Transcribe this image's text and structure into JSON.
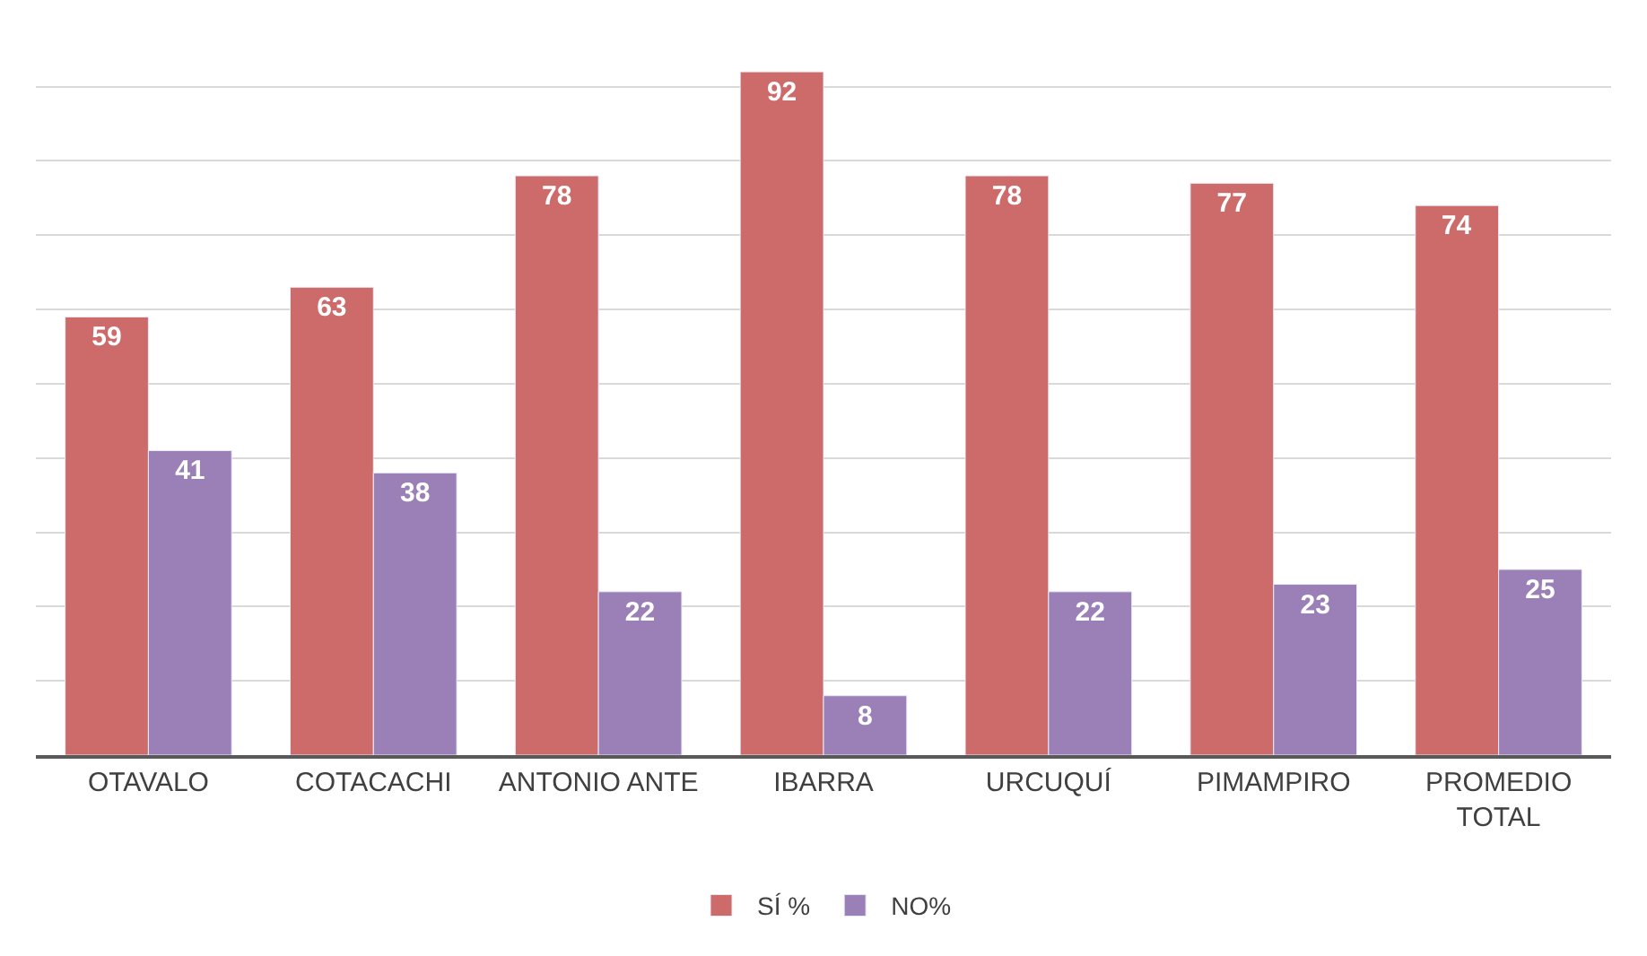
{
  "chart_data": {
    "type": "bar",
    "categories": [
      "OTAVALO",
      "COTACACHI",
      "ANTONIO ANTE",
      "IBARRA",
      "URCUQUÍ",
      "PIMAMPIRO",
      "PROMEDIO TOTAL"
    ],
    "series": [
      {
        "name": "SÍ %",
        "color": "#cd6b6b",
        "values": [
          59,
          63,
          78,
          92,
          78,
          77,
          74
        ]
      },
      {
        "name": "NO%",
        "color": "#9b80b8",
        "values": [
          41,
          38,
          22,
          8,
          22,
          23,
          25
        ]
      }
    ],
    "tick_labels": "x",
    "grid": "y",
    "legend": "bottom",
    "data_labels": true
  }
}
